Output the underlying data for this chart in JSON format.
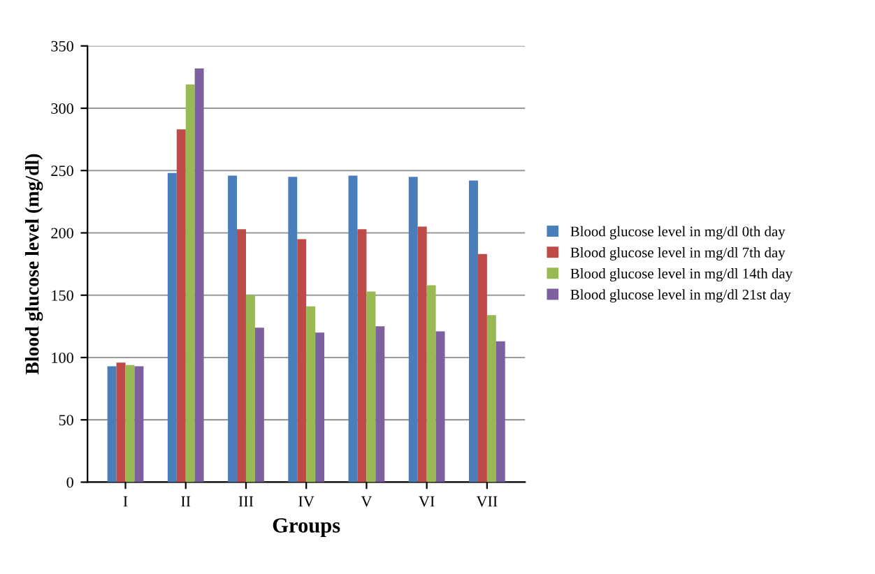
{
  "chart_data": {
    "type": "bar",
    "xlabel": "Groups",
    "ylabel": "Blood glucose level (mg/dl)",
    "categories": [
      "I",
      "II",
      "III",
      "IV",
      "V",
      "VI",
      "VII"
    ],
    "series": [
      {
        "name": "Blood glucose level in mg/dl 0th day",
        "color": "#4a7ebb",
        "values": [
          93,
          248,
          246,
          245,
          246,
          245,
          242
        ]
      },
      {
        "name": "Blood glucose level in mg/dl 7th day",
        "color": "#be4b48",
        "values": [
          96,
          283,
          203,
          195,
          203,
          205,
          183
        ]
      },
      {
        "name": "Blood glucose level in mg/dl 14th day",
        "color": "#98b954",
        "values": [
          94,
          319,
          150,
          141,
          153,
          158,
          134
        ]
      },
      {
        "name": "Blood glucose level in mg/dl 21st day",
        "color": "#7d60a0",
        "values": [
          93,
          332,
          124,
          120,
          125,
          121,
          113
        ]
      }
    ],
    "ylim": [
      0,
      350
    ],
    "yticks": [
      0,
      50,
      100,
      150,
      200,
      250,
      300,
      350
    ],
    "grid": "y",
    "legend": "right"
  }
}
